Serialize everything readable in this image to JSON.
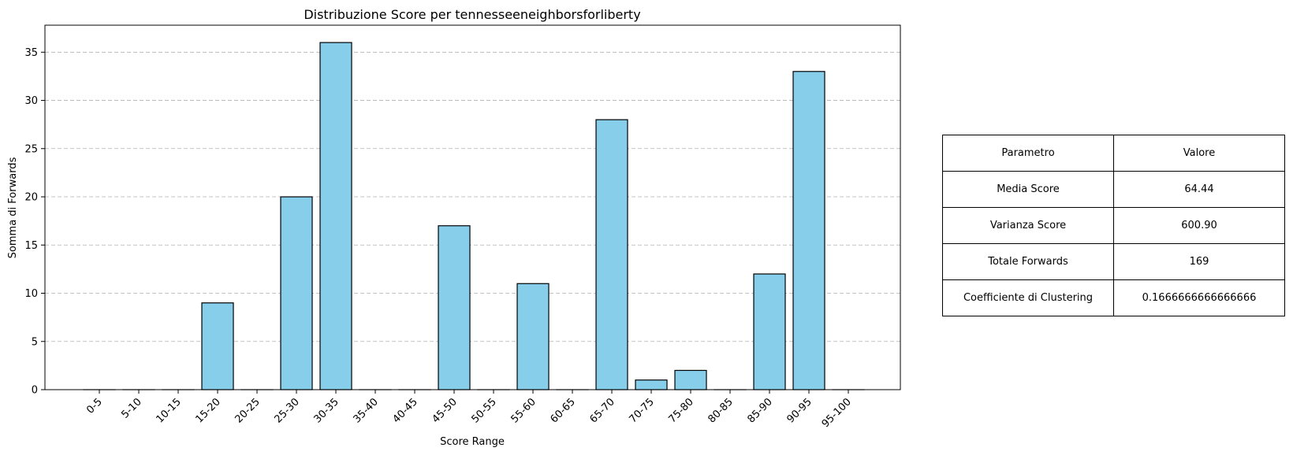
{
  "chart_data": {
    "type": "bar",
    "title": "Distribuzione Score per tennesseeneighborsforliberty",
    "xlabel": "Score Range",
    "ylabel": "Somma di Forwards",
    "categories": [
      "0-5",
      "5-10",
      "10-15",
      "15-20",
      "20-25",
      "25-30",
      "30-35",
      "35-40",
      "40-45",
      "45-50",
      "50-55",
      "55-60",
      "60-65",
      "65-70",
      "70-75",
      "75-80",
      "80-85",
      "85-90",
      "90-95",
      "95-100"
    ],
    "values": [
      0,
      0,
      0,
      9,
      0,
      20,
      36,
      0,
      0,
      17,
      0,
      11,
      0,
      28,
      1,
      2,
      0,
      12,
      33,
      0
    ],
    "ylim": [
      0,
      37.8
    ],
    "yticks": [
      0,
      5,
      10,
      15,
      20,
      25,
      30,
      35
    ],
    "grid": "y-dashed",
    "bar_color": "#87ceeb",
    "edge_color": "#000000"
  },
  "table": {
    "header": [
      "Parametro",
      "Valore"
    ],
    "rows": [
      [
        "Media Score",
        "64.44"
      ],
      [
        "Varianza Score",
        "600.90"
      ],
      [
        "Totale Forwards",
        "169"
      ],
      [
        "Coefficiente di Clustering",
        "0.1666666666666666"
      ]
    ]
  }
}
